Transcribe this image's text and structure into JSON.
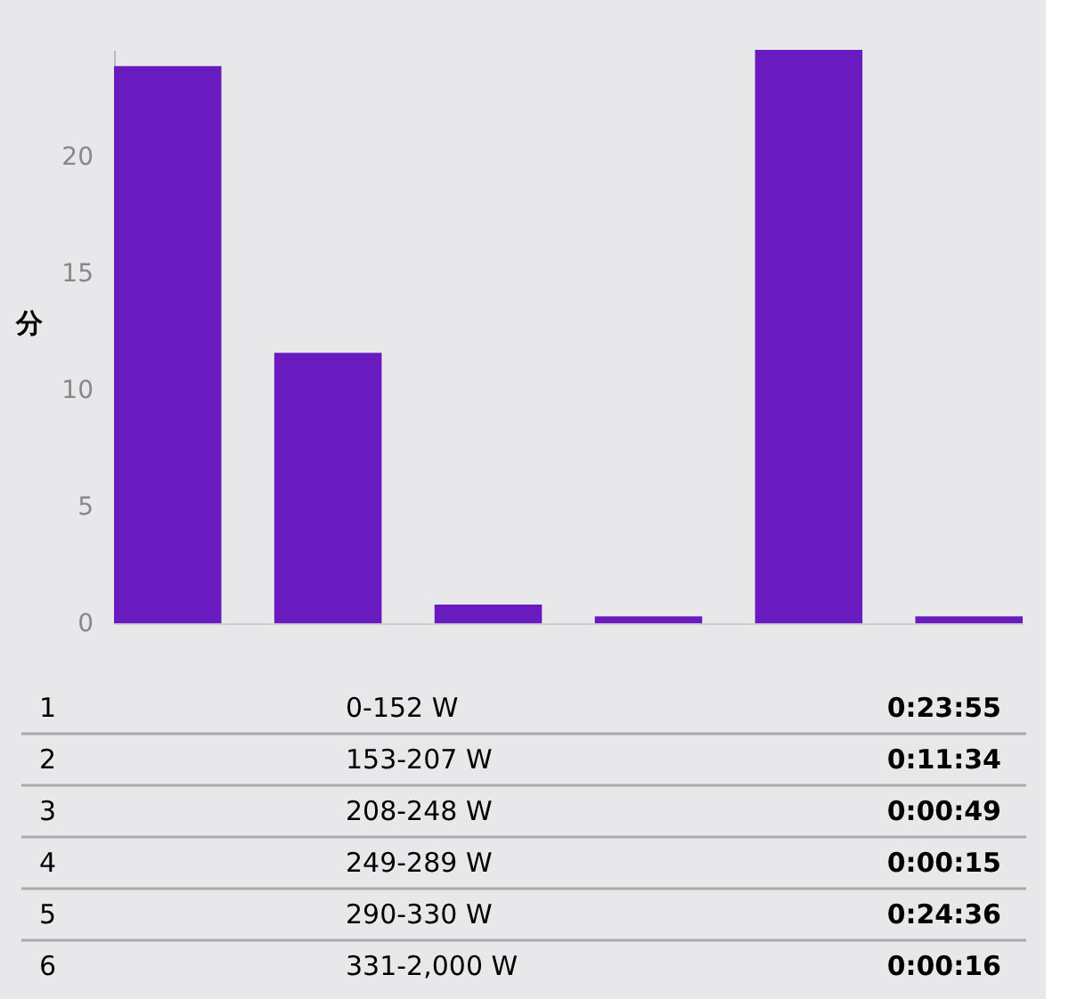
{
  "chart_data": {
    "type": "bar",
    "ylabel": "分",
    "categories": [
      null,
      null,
      null,
      null,
      null,
      null
    ],
    "values": [
      23.9,
      11.6,
      0.8,
      0.3,
      24.6,
      0.3
    ],
    "annotations": [
      "1",
      "0-152 W",
      "0:23:55",
      "2",
      "153-207 W",
      "0:11:34",
      "3",
      "208-248 W",
      "0:00:49",
      "4",
      "249-289 W",
      "0:00:15",
      "5",
      "290-330 W",
      "0:24:36",
      "6",
      "331-2,000 W",
      "0:00:16"
    ],
    "color": "#6a1bbf",
    "ylim": [
      0,
      24.6
    ],
    "yticks": [
      0,
      5,
      10,
      15,
      20
    ],
    "grid": false,
    "tick_labels": "y"
  }
}
